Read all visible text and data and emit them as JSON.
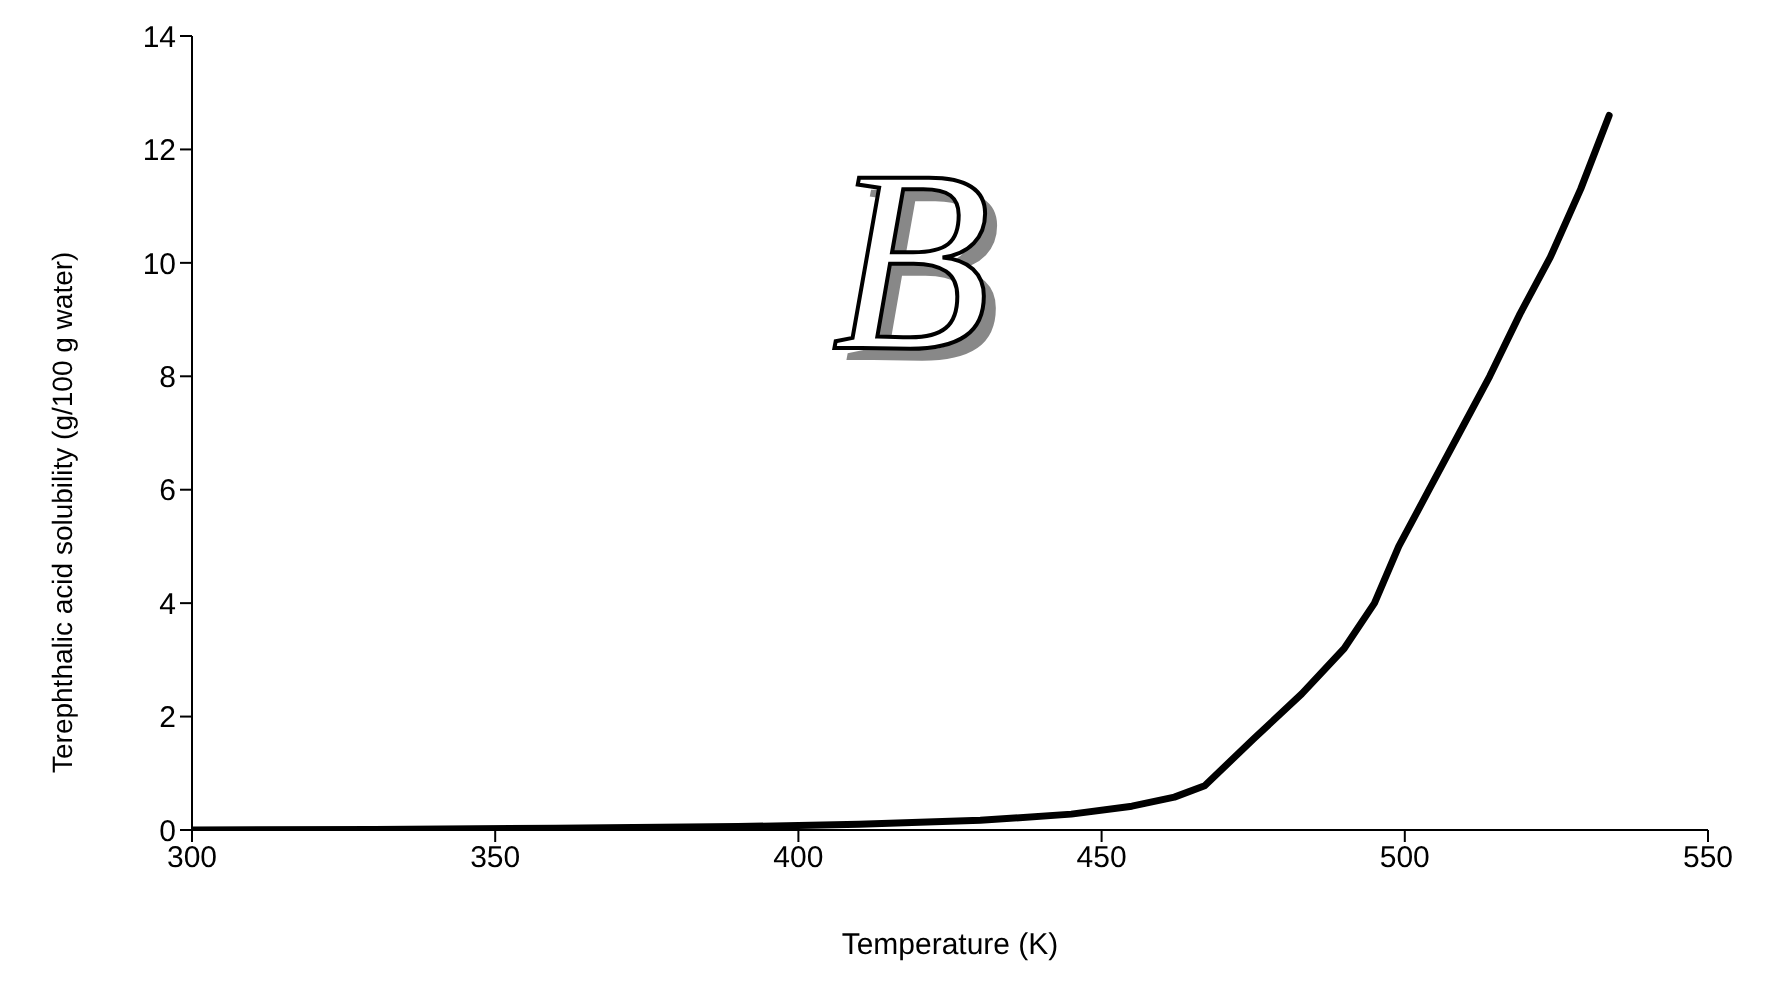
{
  "chart_data": {
    "type": "line",
    "xlabel": "Temperature (K)",
    "ylabel": "Terephthalic acid solubility (g/100 g water)",
    "annotations": [
      "B"
    ],
    "xlim": [
      300,
      550
    ],
    "xticks": [
      300,
      350,
      400,
      450,
      500,
      550
    ],
    "ylim": [
      0,
      14
    ],
    "yticks": [
      0,
      2,
      4,
      6,
      8,
      10,
      12,
      14
    ],
    "grid": false,
    "legend": false,
    "marker": "none",
    "line_style": "solid",
    "series": [
      {
        "color": "#000000",
        "x": [
          300,
          330,
          360,
          390,
          410,
          430,
          445,
          455,
          462,
          467,
          475,
          483,
          490,
          495,
          499,
          504,
          509,
          514,
          519,
          524,
          529,
          533.7
        ],
        "values": [
          0,
          0.01,
          0.03,
          0.06,
          0.1,
          0.17,
          0.28,
          0.42,
          0.58,
          0.78,
          1.6,
          2.4,
          3.2,
          4.0,
          5.0,
          6.0,
          7.0,
          8.0,
          9.1,
          10.1,
          11.3,
          12.6
        ]
      }
    ]
  }
}
